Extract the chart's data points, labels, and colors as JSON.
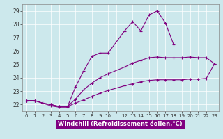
{
  "xlabel": "Windchill (Refroidissement éolien,°C)",
  "bg_color": "#cce8ec",
  "line_color": "#800080",
  "grid_color": "#ffffff",
  "ylim": [
    21.5,
    29.5
  ],
  "xlim": [
    -0.5,
    23.5
  ],
  "yticks": [
    22,
    23,
    24,
    25,
    26,
    27,
    28,
    29
  ],
  "xtick_labels": [
    "0",
    "1",
    "2",
    "3",
    "4",
    "5",
    "6",
    "7",
    "8",
    "9",
    "10",
    "",
    "12",
    "13",
    "14",
    "15",
    "16",
    "17",
    "18",
    "19",
    "20",
    "21",
    "22",
    "23"
  ],
  "series1_x": [
    0,
    1,
    2,
    3,
    4,
    5,
    6,
    7,
    8,
    9,
    10,
    12,
    13,
    14,
    15,
    16,
    17,
    18
  ],
  "series1_y": [
    22.3,
    22.3,
    22.1,
    21.9,
    21.8,
    21.8,
    23.3,
    24.5,
    25.6,
    25.85,
    25.85,
    27.5,
    28.2,
    27.5,
    28.7,
    29.0,
    28.1,
    26.5
  ],
  "series2_x": [
    0,
    1,
    2,
    3,
    4,
    5,
    6,
    7,
    8,
    9,
    10,
    12,
    13,
    14,
    15,
    16,
    17,
    18,
    19,
    20,
    21,
    22,
    23
  ],
  "series2_y": [
    22.3,
    22.3,
    22.1,
    22.0,
    21.85,
    21.85,
    22.4,
    23.1,
    23.6,
    24.0,
    24.3,
    24.8,
    25.1,
    25.3,
    25.5,
    25.55,
    25.5,
    25.5,
    25.5,
    25.55,
    25.5,
    25.5,
    25.05
  ],
  "series3_x": [
    0,
    1,
    2,
    3,
    4,
    5,
    6,
    7,
    8,
    9,
    10,
    12,
    13,
    14,
    15,
    16,
    17,
    18,
    19,
    20,
    21,
    22,
    23
  ],
  "series3_y": [
    22.3,
    22.3,
    22.1,
    22.0,
    21.85,
    21.85,
    22.1,
    22.35,
    22.6,
    22.85,
    23.05,
    23.4,
    23.55,
    23.7,
    23.8,
    23.85,
    23.85,
    23.85,
    23.85,
    23.9,
    23.9,
    23.95,
    25.05
  ]
}
